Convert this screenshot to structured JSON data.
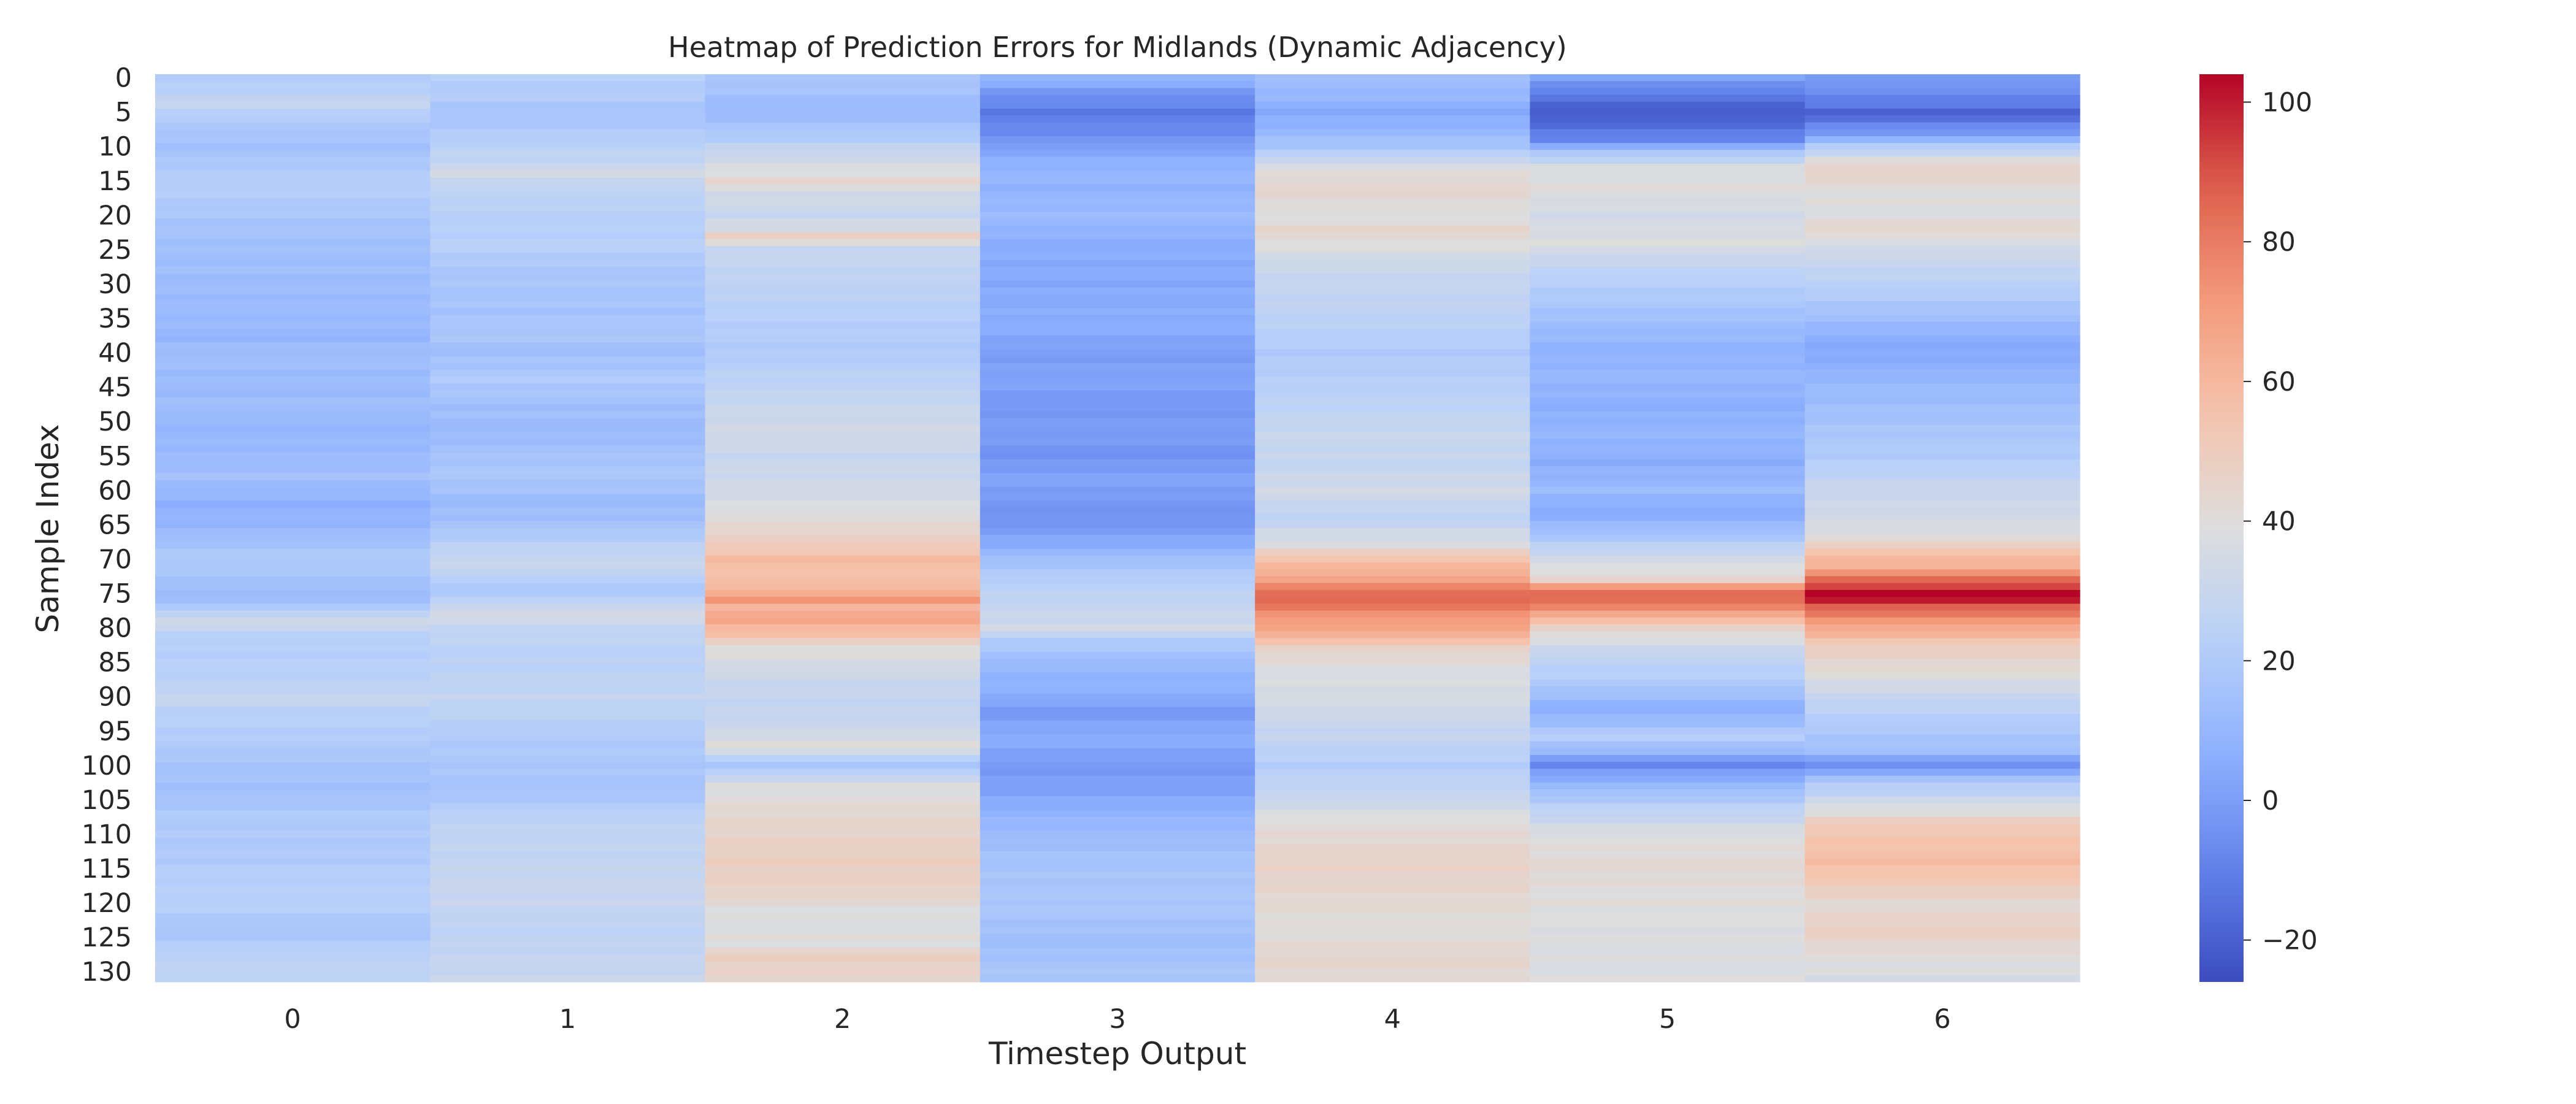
{
  "chart_data": {
    "type": "heatmap",
    "title": "Heatmap of Prediction Errors for Midlands (Dynamic Adjacency)",
    "xlabel": "Timestep Output",
    "ylabel": "Sample Index",
    "x_categories": [
      "0",
      "1",
      "2",
      "3",
      "4",
      "5",
      "6"
    ],
    "y_tick_labels": [
      "0",
      "5",
      "10",
      "15",
      "20",
      "25",
      "30",
      "35",
      "40",
      "45",
      "50",
      "55",
      "60",
      "65",
      "70",
      "75",
      "80",
      "85",
      "90",
      "95",
      "100",
      "105",
      "110",
      "115",
      "120",
      "125",
      "130"
    ],
    "y_tick_values": [
      0,
      5,
      10,
      15,
      20,
      25,
      30,
      35,
      40,
      45,
      50,
      55,
      60,
      65,
      70,
      75,
      80,
      85,
      90,
      95,
      100,
      105,
      110,
      115,
      120,
      125,
      130
    ],
    "n_rows": 132,
    "colormap": "coolwarm",
    "vmin": -26,
    "vmax": 104,
    "colorbar_ticks": [
      -20,
      0,
      20,
      40,
      60,
      80,
      100
    ],
    "colorbar_tick_labels": [
      "−20",
      "0",
      "20",
      "40",
      "60",
      "80",
      "100"
    ],
    "column_value_keyframes": [
      [
        [
          0,
          20
        ],
        [
          3,
          26
        ],
        [
          4,
          29
        ],
        [
          5,
          24
        ],
        [
          6,
          20
        ],
        [
          9,
          16
        ],
        [
          10,
          15
        ],
        [
          11,
          16
        ],
        [
          13,
          20
        ],
        [
          16,
          22
        ],
        [
          20,
          18
        ],
        [
          22,
          16
        ],
        [
          26,
          14
        ],
        [
          30,
          13
        ],
        [
          35,
          12
        ],
        [
          38,
          10
        ],
        [
          40,
          14
        ],
        [
          45,
          12
        ],
        [
          48,
          14
        ],
        [
          50,
          10
        ],
        [
          55,
          12
        ],
        [
          58,
          15
        ],
        [
          62,
          7
        ],
        [
          65,
          10
        ],
        [
          68,
          16
        ],
        [
          70,
          20
        ],
        [
          73,
          16
        ],
        [
          75,
          12
        ],
        [
          77,
          18
        ],
        [
          79,
          34
        ],
        [
          80,
          28
        ],
        [
          82,
          22
        ],
        [
          88,
          24
        ],
        [
          90,
          30
        ],
        [
          92,
          24
        ],
        [
          97,
          20
        ],
        [
          100,
          16
        ],
        [
          104,
          15
        ],
        [
          108,
          20
        ],
        [
          112,
          19
        ],
        [
          116,
          22
        ],
        [
          120,
          23
        ],
        [
          124,
          17
        ],
        [
          128,
          25
        ],
        [
          131,
          26
        ]
      ],
      [
        [
          0,
          22
        ],
        [
          3,
          20
        ],
        [
          5,
          16
        ],
        [
          8,
          20
        ],
        [
          12,
          28
        ],
        [
          14,
          34
        ],
        [
          16,
          26
        ],
        [
          22,
          22
        ],
        [
          24,
          24
        ],
        [
          28,
          18
        ],
        [
          34,
          16
        ],
        [
          37,
          18
        ],
        [
          40,
          14
        ],
        [
          44,
          20
        ],
        [
          48,
          14
        ],
        [
          52,
          12
        ],
        [
          55,
          16
        ],
        [
          58,
          18
        ],
        [
          62,
          12
        ],
        [
          65,
          16
        ],
        [
          68,
          24
        ],
        [
          70,
          30
        ],
        [
          72,
          28
        ],
        [
          74,
          18
        ],
        [
          76,
          24
        ],
        [
          78,
          36
        ],
        [
          80,
          28
        ],
        [
          84,
          24
        ],
        [
          90,
          28
        ],
        [
          96,
          20
        ],
        [
          100,
          18
        ],
        [
          104,
          16
        ],
        [
          108,
          26
        ],
        [
          114,
          28
        ],
        [
          118,
          30
        ],
        [
          124,
          26
        ],
        [
          131,
          30
        ]
      ],
      [
        [
          0,
          18
        ],
        [
          3,
          14
        ],
        [
          5,
          12
        ],
        [
          7,
          16
        ],
        [
          9,
          22
        ],
        [
          11,
          30
        ],
        [
          13,
          36
        ],
        [
          15,
          44
        ],
        [
          17,
          34
        ],
        [
          20,
          30
        ],
        [
          22,
          36
        ],
        [
          23,
          48
        ],
        [
          25,
          30
        ],
        [
          30,
          26
        ],
        [
          36,
          22
        ],
        [
          40,
          20
        ],
        [
          46,
          28
        ],
        [
          52,
          34
        ],
        [
          55,
          30
        ],
        [
          60,
          34
        ],
        [
          64,
          40
        ],
        [
          68,
          50
        ],
        [
          70,
          58
        ],
        [
          73,
          56
        ],
        [
          75,
          64
        ],
        [
          76,
          72
        ],
        [
          77,
          62
        ],
        [
          79,
          66
        ],
        [
          81,
          56
        ],
        [
          83,
          40
        ],
        [
          88,
          30
        ],
        [
          92,
          28
        ],
        [
          95,
          32
        ],
        [
          97,
          40
        ],
        [
          98,
          34
        ],
        [
          100,
          16
        ],
        [
          103,
          38
        ],
        [
          108,
          44
        ],
        [
          114,
          48
        ],
        [
          118,
          46
        ],
        [
          122,
          38
        ],
        [
          126,
          40
        ],
        [
          128,
          48
        ],
        [
          131,
          44
        ]
      ],
      [
        [
          0,
          10
        ],
        [
          2,
          -2
        ],
        [
          5,
          -12
        ],
        [
          7,
          -8
        ],
        [
          9,
          -4
        ],
        [
          11,
          4
        ],
        [
          14,
          10
        ],
        [
          16,
          8
        ],
        [
          20,
          12
        ],
        [
          24,
          6
        ],
        [
          30,
          4
        ],
        [
          36,
          6
        ],
        [
          40,
          0
        ],
        [
          44,
          2
        ],
        [
          48,
          -2
        ],
        [
          52,
          0
        ],
        [
          55,
          -4
        ],
        [
          58,
          2
        ],
        [
          62,
          -2
        ],
        [
          64,
          -4
        ],
        [
          66,
          0
        ],
        [
          68,
          6
        ],
        [
          70,
          14
        ],
        [
          74,
          24
        ],
        [
          78,
          30
        ],
        [
          80,
          34
        ],
        [
          82,
          20
        ],
        [
          86,
          10
        ],
        [
          90,
          6
        ],
        [
          92,
          -2
        ],
        [
          94,
          2
        ],
        [
          96,
          6
        ],
        [
          100,
          -2
        ],
        [
          104,
          2
        ],
        [
          108,
          10
        ],
        [
          114,
          16
        ],
        [
          120,
          18
        ],
        [
          126,
          14
        ],
        [
          131,
          18
        ]
      ],
      [
        [
          0,
          14
        ],
        [
          3,
          10
        ],
        [
          5,
          4
        ],
        [
          7,
          8
        ],
        [
          9,
          14
        ],
        [
          11,
          22
        ],
        [
          13,
          38
        ],
        [
          16,
          44
        ],
        [
          20,
          38
        ],
        [
          22,
          44
        ],
        [
          24,
          40
        ],
        [
          28,
          30
        ],
        [
          34,
          26
        ],
        [
          40,
          20
        ],
        [
          46,
          24
        ],
        [
          52,
          30
        ],
        [
          56,
          28
        ],
        [
          60,
          34
        ],
        [
          64,
          26
        ],
        [
          68,
          38
        ],
        [
          70,
          56
        ],
        [
          72,
          62
        ],
        [
          74,
          76
        ],
        [
          75,
          84
        ],
        [
          76,
          86
        ],
        [
          77,
          80
        ],
        [
          79,
          70
        ],
        [
          81,
          64
        ],
        [
          83,
          46
        ],
        [
          86,
          38
        ],
        [
          90,
          36
        ],
        [
          96,
          28
        ],
        [
          100,
          22
        ],
        [
          104,
          28
        ],
        [
          108,
          40
        ],
        [
          114,
          46
        ],
        [
          118,
          44
        ],
        [
          124,
          40
        ],
        [
          128,
          44
        ],
        [
          131,
          42
        ]
      ],
      [
        [
          0,
          2
        ],
        [
          2,
          -10
        ],
        [
          5,
          -22
        ],
        [
          7,
          -16
        ],
        [
          9,
          -8
        ],
        [
          11,
          18
        ],
        [
          13,
          36
        ],
        [
          16,
          40
        ],
        [
          20,
          34
        ],
        [
          24,
          38
        ],
        [
          28,
          26
        ],
        [
          34,
          16
        ],
        [
          40,
          8
        ],
        [
          44,
          10
        ],
        [
          48,
          6
        ],
        [
          52,
          10
        ],
        [
          56,
          6
        ],
        [
          60,
          12
        ],
        [
          63,
          4
        ],
        [
          66,
          14
        ],
        [
          70,
          34
        ],
        [
          73,
          44
        ],
        [
          74,
          70
        ],
        [
          75,
          86
        ],
        [
          77,
          78
        ],
        [
          79,
          56
        ],
        [
          81,
          40
        ],
        [
          84,
          28
        ],
        [
          88,
          20
        ],
        [
          92,
          6
        ],
        [
          94,
          14
        ],
        [
          96,
          22
        ],
        [
          98,
          10
        ],
        [
          100,
          -8
        ],
        [
          102,
          6
        ],
        [
          106,
          24
        ],
        [
          110,
          38
        ],
        [
          114,
          42
        ],
        [
          118,
          40
        ],
        [
          124,
          38
        ],
        [
          131,
          38
        ]
      ],
      [
        [
          0,
          0
        ],
        [
          2,
          -6
        ],
        [
          4,
          -12
        ],
        [
          5,
          -20
        ],
        [
          6,
          -14
        ],
        [
          8,
          -2
        ],
        [
          10,
          20
        ],
        [
          12,
          40
        ],
        [
          14,
          46
        ],
        [
          16,
          40
        ],
        [
          20,
          38
        ],
        [
          22,
          44
        ],
        [
          24,
          36
        ],
        [
          28,
          28
        ],
        [
          34,
          16
        ],
        [
          38,
          6
        ],
        [
          40,
          4
        ],
        [
          44,
          10
        ],
        [
          48,
          14
        ],
        [
          52,
          18
        ],
        [
          56,
          22
        ],
        [
          60,
          30
        ],
        [
          64,
          34
        ],
        [
          67,
          40
        ],
        [
          69,
          56
        ],
        [
          71,
          62
        ],
        [
          73,
          84
        ],
        [
          74,
          94
        ],
        [
          75,
          104
        ],
        [
          76,
          100
        ],
        [
          77,
          88
        ],
        [
          79,
          72
        ],
        [
          81,
          60
        ],
        [
          83,
          48
        ],
        [
          86,
          42
        ],
        [
          90,
          30
        ],
        [
          94,
          20
        ],
        [
          98,
          14
        ],
        [
          100,
          -6
        ],
        [
          102,
          16
        ],
        [
          106,
          36
        ],
        [
          109,
          52
        ],
        [
          114,
          58
        ],
        [
          117,
          52
        ],
        [
          120,
          42
        ],
        [
          124,
          48
        ],
        [
          128,
          40
        ],
        [
          131,
          36
        ]
      ]
    ]
  }
}
